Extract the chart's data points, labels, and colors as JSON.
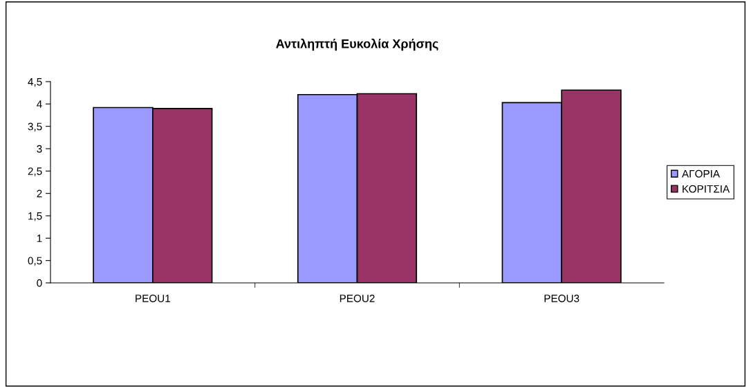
{
  "chart_data": {
    "type": "bar",
    "title": "Αντιληπτή Ευκολία Χρήσης",
    "categories": [
      "PEOU1",
      "PEOU2",
      "PEOU3"
    ],
    "series": [
      {
        "name": "ΑΓΟΡΙΑ",
        "color": "#9999ff",
        "values": [
          3.92,
          4.21,
          4.03
        ]
      },
      {
        "name": "ΚΟΡΙΤΣΙΑ",
        "color": "#993366",
        "values": [
          3.9,
          4.23,
          4.31
        ]
      }
    ],
    "ylim": [
      0,
      4.5
    ],
    "yticks": [
      0,
      {
        "value": 0.5,
        "label": "0,5"
      },
      1,
      {
        "value": 1.5,
        "label": "1,5"
      },
      2,
      {
        "value": 2.5,
        "label": "2,5"
      },
      3,
      {
        "value": 3.5,
        "label": "3,5"
      },
      4,
      {
        "value": 4.5,
        "label": "4,5"
      }
    ],
    "grid": false,
    "legend": "right"
  }
}
